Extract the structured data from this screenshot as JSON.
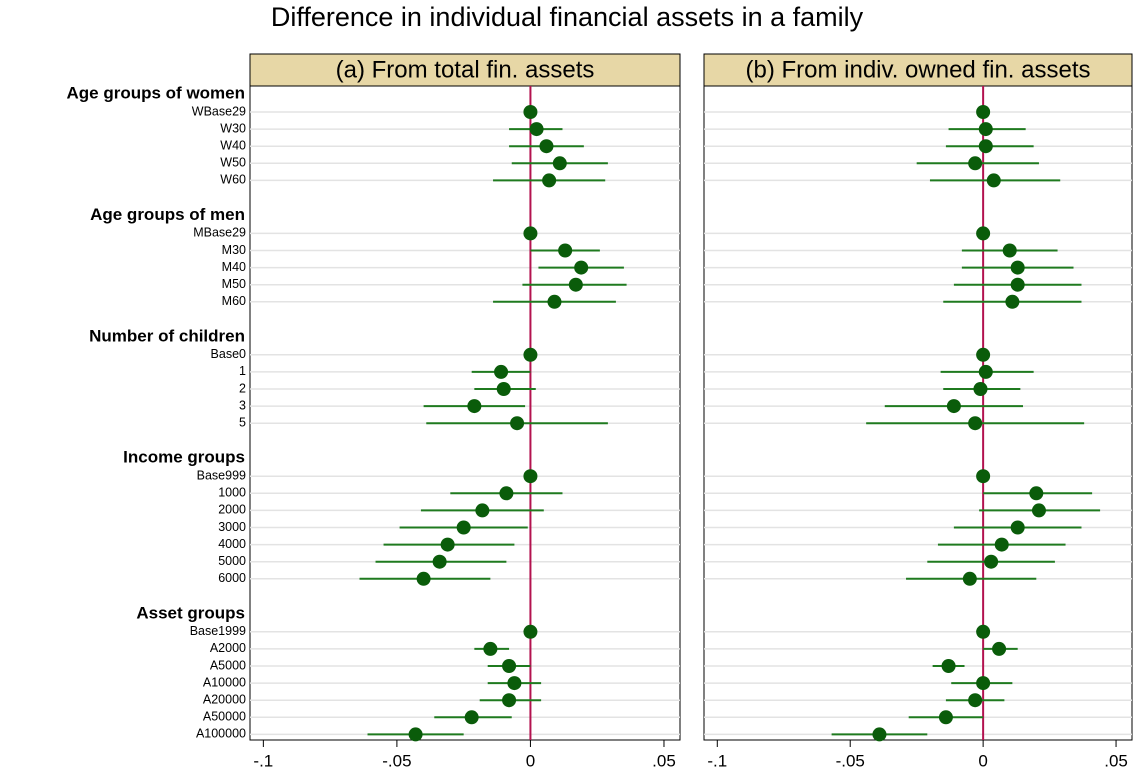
{
  "chart_data": {
    "type": "coefplot",
    "title": "Difference in individual financial assets in a family",
    "groups": [
      {
        "label": "Age groups of women",
        "categories": [
          "WBase29",
          "W30",
          "W40",
          "W50",
          "W60"
        ]
      },
      {
        "label": "Age groups of men",
        "categories": [
          "MBase29",
          "M30",
          "M40",
          "M50",
          "M60"
        ]
      },
      {
        "label": "Number of children",
        "categories": [
          "Base0",
          "1",
          "2",
          "3",
          "5"
        ]
      },
      {
        "label": "Income groups",
        "categories": [
          "Base999",
          "1000",
          "2000",
          "3000",
          "4000",
          "5000",
          "6000"
        ]
      },
      {
        "label": "Asset groups",
        "categories": [
          "Base1999",
          "A2000",
          "A5000",
          "A10000",
          "A20000",
          "A50000",
          "A100000"
        ]
      }
    ],
    "panels": [
      {
        "title": "(a) From total fin. assets",
        "values": [
          0,
          0.0023,
          0.006,
          0.011,
          0.007,
          0,
          0.013,
          0.019,
          0.017,
          0.009,
          0,
          -0.011,
          -0.01,
          -0.021,
          -0.005,
          0,
          -0.009,
          -0.018,
          -0.025,
          -0.031,
          -0.034,
          -0.04,
          0,
          -0.015,
          -0.008,
          -0.006,
          -0.008,
          -0.022,
          -0.043
        ],
        "lower": [
          null,
          -0.008,
          -0.008,
          -0.007,
          -0.014,
          null,
          0.0,
          0.003,
          -0.003,
          -0.014,
          null,
          -0.022,
          -0.021,
          -0.04,
          -0.039,
          null,
          -0.03,
          -0.041,
          -0.049,
          -0.055,
          -0.058,
          -0.064,
          null,
          -0.021,
          -0.016,
          -0.016,
          -0.019,
          -0.036,
          -0.061
        ],
        "upper": [
          null,
          0.012,
          0.02,
          0.029,
          0.028,
          null,
          0.026,
          0.035,
          0.036,
          0.032,
          null,
          0.0,
          0.002,
          -0.002,
          0.029,
          null,
          0.012,
          0.005,
          -0.001,
          -0.006,
          -0.009,
          -0.015,
          null,
          -0.008,
          0.0,
          0.004,
          0.004,
          -0.007,
          -0.025
        ]
      },
      {
        "title": "(b) From indiv. owned fin. assets",
        "values": [
          0,
          0.001,
          0.001,
          -0.003,
          0.004,
          0,
          0.01,
          0.013,
          0.013,
          0.011,
          0,
          0.001,
          -0.001,
          -0.011,
          -0.003,
          0,
          0.02,
          0.021,
          0.013,
          0.007,
          0.003,
          -0.005,
          0,
          0.006,
          -0.013,
          0,
          -0.003,
          -0.014,
          -0.039
        ],
        "lower": [
          null,
          -0.013,
          -0.014,
          -0.025,
          -0.02,
          null,
          -0.008,
          -0.008,
          -0.011,
          -0.015,
          null,
          -0.016,
          -0.015,
          -0.037,
          -0.044,
          null,
          0.0,
          -0.0015,
          -0.011,
          -0.017,
          -0.021,
          -0.029,
          null,
          0.0,
          -0.019,
          -0.012,
          -0.014,
          -0.028,
          -0.057
        ],
        "upper": [
          null,
          0.016,
          0.019,
          0.021,
          0.029,
          null,
          0.028,
          0.034,
          0.037,
          0.037,
          null,
          0.019,
          0.014,
          0.015,
          0.038,
          null,
          0.041,
          0.044,
          0.037,
          0.031,
          0.027,
          0.02,
          null,
          0.013,
          -0.007,
          0.011,
          0.008,
          0.0,
          -0.021
        ]
      }
    ],
    "xlim": [
      -0.105,
      0.056
    ],
    "xticks": [
      {
        "value": -0.1,
        "label": "-.1"
      },
      {
        "value": -0.05,
        "label": "-.05"
      },
      0,
      {
        "value": 0.05,
        "label": ".05"
      }
    ],
    "reference_line": 0,
    "color": "#0a5c0a",
    "ci_color": "#1f7a1f",
    "reference_color": "#b3124f",
    "grid": true
  }
}
